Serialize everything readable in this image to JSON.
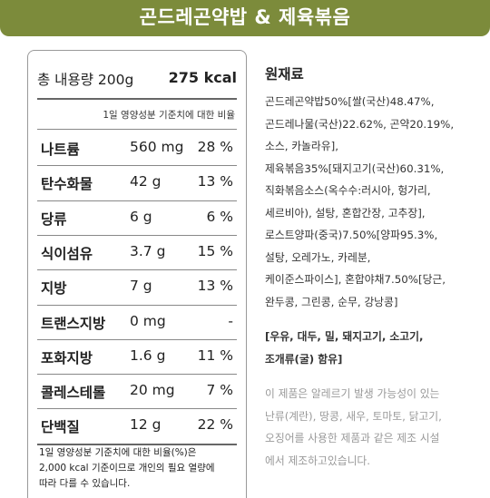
{
  "banner": {
    "title": "곤드레곤약밥 & 제육볶음"
  },
  "nutrition": {
    "total_label": "총 내용량 200g",
    "calories": "275 kcal",
    "basis_note": "1일 영양성분 기준치에 대한 비율",
    "rows": [
      {
        "name": "나트륨",
        "amount": "560 mg",
        "percent": "28 %"
      },
      {
        "name": "탄수화물",
        "amount": "42 g",
        "percent": "13 %"
      },
      {
        "name": "당류",
        "amount": "6 g",
        "percent": "6 %"
      },
      {
        "name": "식이섬유",
        "amount": "3.7 g",
        "percent": "15 %"
      },
      {
        "name": "지방",
        "amount": "7 g",
        "percent": "13 %"
      },
      {
        "name": "트랜스지방",
        "amount": "0 mg",
        "percent": "-"
      },
      {
        "name": "포화지방",
        "amount": "1.6 g",
        "percent": "11 %"
      },
      {
        "name": "콜레스테롤",
        "amount": "20 mg",
        "percent": "7 %"
      },
      {
        "name": "단백질",
        "amount": "12 g",
        "percent": "22 %"
      }
    ],
    "footnote_lines": [
      "1일 영양성분 기준치에 대한 비율(%)은",
      "2,000 kcal 기준이므로 개인의 필요 열량에",
      "따라 다를 수 있습니다."
    ]
  },
  "ingredients": {
    "title": "원재료",
    "lines": [
      "곤드레곤약밥50%[쌀(국산)48.47%,",
      "곤드레나물(국산)22.62%, 곤약20.19%,",
      "소스, 카놀라유],",
      "제육볶음35%[돼지고기(국산)60.31%,",
      "직화볶음소스(옥수수:러시아, 헝가리,",
      "세르비아), 설탕, 혼합간장, 고추장],",
      "로스트양파(중국)7.50%[양파95.3%,",
      "설탕, 오레가노, 카레분,",
      "케이준스파이스], 혼합야채7.50%[당근,",
      "완두콩, 그린콩, 순무, 강낭콩]"
    ],
    "allergen_lines": [
      "[우유, 대두, 밀, 돼지고기, 소고기,",
      "조개류(굴) 함유]"
    ],
    "disclaimer_lines": [
      "이 제품은 알레르기 발생 가능성이 있는",
      "난류(계란), 땅콩, 새우, 토마토, 닭고기,",
      "오징어를 사용한 제품과 같은 제조 시설",
      "에서 제조하고있습니다."
    ]
  }
}
